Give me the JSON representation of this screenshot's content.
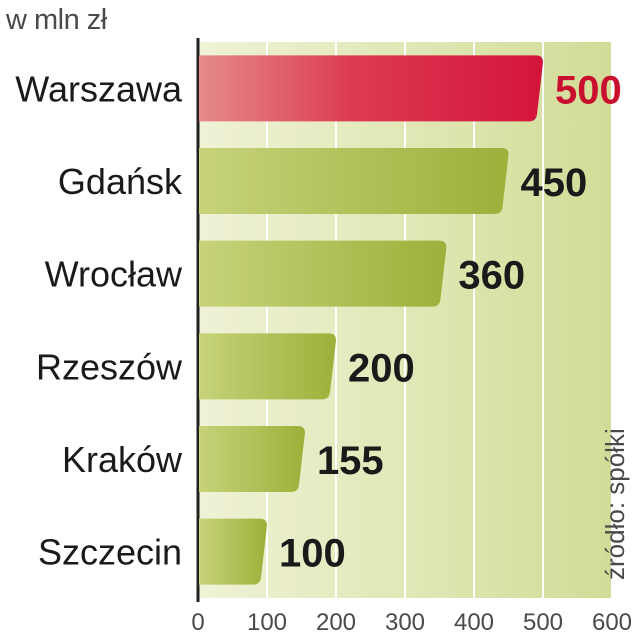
{
  "chart_data": {
    "type": "bar",
    "orientation": "horizontal",
    "unit_label": "w mln zł",
    "source": "źródło: spółki",
    "categories": [
      "Warszawa",
      "Gdańsk",
      "Wrocław",
      "Rzeszów",
      "Kraków",
      "Szczecin"
    ],
    "values": [
      500,
      450,
      360,
      200,
      155,
      100
    ],
    "value_labels": [
      "500",
      "450",
      "360",
      "200",
      "155",
      "100"
    ],
    "highlight_index": 0,
    "xlim": [
      0,
      600
    ],
    "xticks": [
      0,
      100,
      200,
      300,
      400,
      500,
      600
    ],
    "xtick_labels": [
      "0",
      "100",
      "200",
      "300",
      "400",
      "500",
      "600"
    ],
    "grid": true,
    "colors": {
      "highlight_bar": "#d4143a",
      "bar": "#9bb13a",
      "highlight_value": "#c8102e",
      "value": "#1a1a1a",
      "background_left": "#f0f2d6",
      "background_right": "#d2dc97"
    }
  }
}
